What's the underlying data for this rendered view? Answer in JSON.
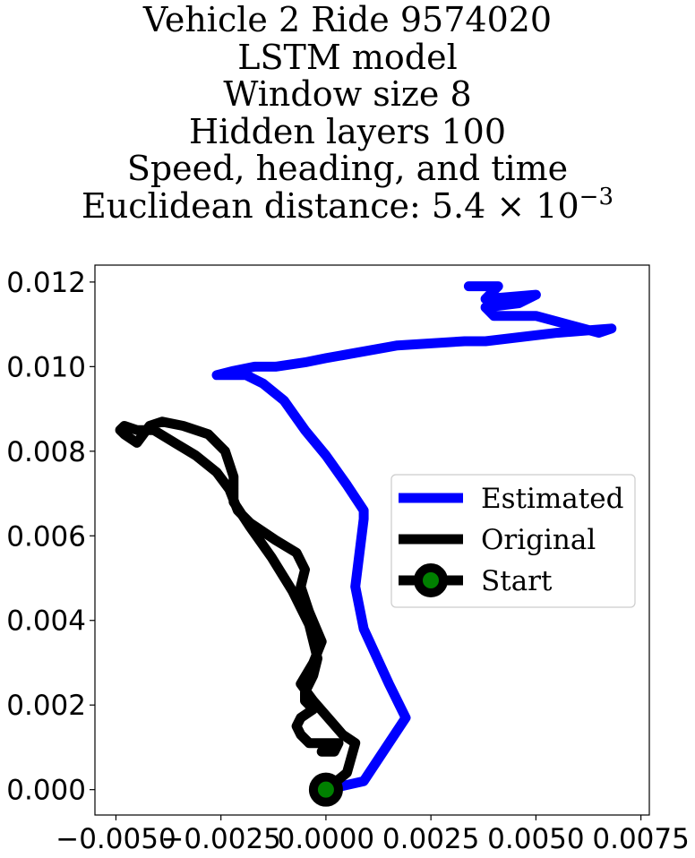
{
  "chart_data": {
    "type": "line",
    "title_lines": [
      "Vehicle 2 Ride 9574020",
      "LSTM model",
      "Window size 8",
      "Hidden layers 100",
      "Speed, heading, and time"
    ],
    "title_metric_prefix": "Euclidean distance: 5.4 × 10",
    "title_metric_exponent": "−3",
    "xlim": [
      -0.0055,
      0.0077
    ],
    "ylim": [
      -0.0006,
      0.0124
    ],
    "x_ticks": [
      -0.005,
      -0.0025,
      0.0,
      0.0025,
      0.005,
      0.0075
    ],
    "x_tick_labels": [
      "−0.0050",
      "−0.0025",
      "0.0000",
      "0.0025",
      "0.0050",
      "0.0075"
    ],
    "y_ticks": [
      0.0,
      0.002,
      0.004,
      0.006,
      0.008,
      0.01,
      0.012
    ],
    "y_tick_labels": [
      "0.000",
      "0.002",
      "0.004",
      "0.006",
      "0.008",
      "0.010",
      "0.012"
    ],
    "grid": false,
    "legend_position": "center-right",
    "series": [
      {
        "name": "Estimated",
        "color": "#0000ff",
        "x": [
          0.0,
          0.0009,
          0.0019,
          0.0015,
          0.0009,
          0.0007,
          0.0009,
          0.0009,
          0.0005,
          0.0,
          -0.0005,
          -0.001,
          -0.0015,
          -0.0019,
          -0.0026,
          -0.0022,
          -0.0017,
          -0.0012,
          -0.0005,
          0.0,
          0.0017,
          0.0033,
          0.0038,
          0.0055,
          0.0068,
          0.0065,
          0.005,
          0.004,
          0.0038,
          0.0046,
          0.005,
          0.0038,
          0.0041,
          0.0034
        ],
        "y": [
          0.0,
          0.0002,
          0.0017,
          0.0025,
          0.0038,
          0.0048,
          0.0064,
          0.0066,
          0.0072,
          0.0079,
          0.0085,
          0.0092,
          0.0096,
          0.0098,
          0.0098,
          0.0099,
          0.01,
          0.01,
          0.0101,
          0.0102,
          0.0105,
          0.0106,
          0.0106,
          0.0108,
          0.0109,
          0.0108,
          0.0112,
          0.0112,
          0.0114,
          0.0115,
          0.0117,
          0.0116,
          0.0119,
          0.0119
        ]
      },
      {
        "name": "Original",
        "color": "#000000",
        "x": [
          0.0,
          0.0005,
          0.0007,
          0.0004,
          -0.0003,
          -0.0006,
          -0.0003,
          -0.0001,
          -0.0004,
          -0.0006,
          -0.0005,
          -0.0007,
          -0.0012,
          -0.0018,
          -0.0021,
          -0.0023,
          -0.0026,
          -0.0031,
          -0.0036,
          -0.0041,
          -0.0045,
          -0.0048,
          -0.0049,
          -0.0048,
          -0.0045,
          -0.0042,
          -0.0039,
          -0.0034,
          -0.0028,
          -0.0024,
          -0.0022,
          -0.0022,
          -0.0018,
          -0.0013,
          -0.0008,
          -0.0004,
          -0.0002,
          -0.0003,
          -0.0005,
          -0.0005,
          -0.0003,
          -0.0006,
          -0.0007,
          -0.0006,
          -0.0004,
          0.0003,
          0.0002,
          -0.0001
        ],
        "y": [
          0.0,
          0.0004,
          0.0011,
          0.0013,
          0.0021,
          0.0025,
          0.003,
          0.0035,
          0.0042,
          0.0048,
          0.0052,
          0.0056,
          0.0059,
          0.0063,
          0.0066,
          0.0071,
          0.0075,
          0.0079,
          0.0082,
          0.0085,
          0.0085,
          0.0086,
          0.0085,
          0.0084,
          0.0082,
          0.0086,
          0.0087,
          0.0086,
          0.0084,
          0.008,
          0.0074,
          0.0068,
          0.0062,
          0.0055,
          0.0047,
          0.0039,
          0.0031,
          0.0027,
          0.0023,
          0.0021,
          0.0019,
          0.0017,
          0.0015,
          0.0013,
          0.0011,
          0.0011,
          0.0009,
          0.0009
        ]
      }
    ],
    "start_marker": {
      "name": "Start",
      "x": 0.0,
      "y": 0.0,
      "edge_color": "#000000",
      "face_color": "#008000"
    }
  }
}
